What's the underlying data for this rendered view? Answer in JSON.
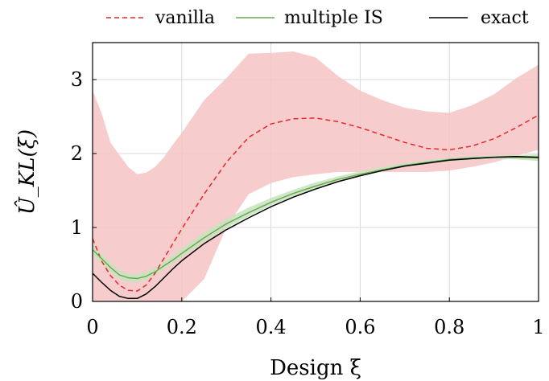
{
  "chart_data": {
    "type": "line",
    "title": "",
    "xlabel": "Design ξ",
    "ylabel": "Û_KL(ξ)",
    "xlim": [
      0,
      1
    ],
    "ylim": [
      0,
      3.5
    ],
    "xticks": [
      0,
      0.2,
      0.4,
      0.6,
      0.8,
      1
    ],
    "xtick_labels": [
      "0",
      "0.2",
      "0.4",
      "0.6",
      "0.8",
      "1"
    ],
    "yticks": [
      0,
      1,
      2,
      3
    ],
    "ytick_labels": [
      "0",
      "1",
      "2",
      "3"
    ],
    "grid": true,
    "legend_position": "top, above plot",
    "x": [
      0,
      0.02,
      0.04,
      0.06,
      0.08,
      0.1,
      0.12,
      0.14,
      0.16,
      0.18,
      0.2,
      0.25,
      0.3,
      0.35,
      0.4,
      0.45,
      0.5,
      0.55,
      0.6,
      0.65,
      0.7,
      0.75,
      0.8,
      0.85,
      0.9,
      0.95,
      1
    ],
    "series": [
      {
        "name": "vanilla",
        "style": "dashed",
        "color": "#e8262a",
        "values": [
          0.85,
          0.55,
          0.35,
          0.22,
          0.15,
          0.14,
          0.22,
          0.38,
          0.58,
          0.78,
          0.98,
          1.45,
          1.88,
          2.22,
          2.4,
          2.47,
          2.48,
          2.43,
          2.35,
          2.25,
          2.15,
          2.07,
          2.05,
          2.1,
          2.2,
          2.35,
          2.52
        ],
        "band_lower": [
          0.0,
          0.0,
          0.0,
          0.0,
          0.0,
          0.0,
          0.0,
          0.0,
          0.0,
          0.0,
          0.0,
          0.3,
          1.0,
          1.45,
          1.6,
          1.68,
          1.72,
          1.75,
          1.75,
          1.75,
          1.75,
          1.75,
          1.77,
          1.82,
          1.88,
          1.97,
          2.05
        ],
        "band_upper": [
          2.85,
          2.55,
          2.15,
          1.98,
          1.82,
          1.72,
          1.74,
          1.82,
          1.95,
          2.12,
          2.28,
          2.72,
          3.02,
          3.35,
          3.36,
          3.38,
          3.3,
          3.05,
          2.85,
          2.72,
          2.62,
          2.57,
          2.55,
          2.65,
          2.8,
          3.02,
          3.2
        ],
        "band_color": "#f6c3c3"
      },
      {
        "name": "multiple IS",
        "style": "solid",
        "color": "#6aaa55",
        "values": [
          0.7,
          0.58,
          0.46,
          0.36,
          0.32,
          0.31,
          0.34,
          0.4,
          0.48,
          0.56,
          0.65,
          0.86,
          1.05,
          1.2,
          1.34,
          1.46,
          1.56,
          1.65,
          1.72,
          1.78,
          1.84,
          1.88,
          1.92,
          1.94,
          1.95,
          1.95,
          1.94
        ],
        "band_lower": [
          0.63,
          0.51,
          0.39,
          0.3,
          0.26,
          0.26,
          0.29,
          0.35,
          0.43,
          0.51,
          0.6,
          0.8,
          0.99,
          1.15,
          1.3,
          1.42,
          1.52,
          1.61,
          1.69,
          1.76,
          1.82,
          1.86,
          1.9,
          1.92,
          1.93,
          1.92,
          1.9
        ],
        "band_upper": [
          0.77,
          0.65,
          0.53,
          0.42,
          0.38,
          0.37,
          0.4,
          0.46,
          0.54,
          0.62,
          0.72,
          0.93,
          1.12,
          1.27,
          1.4,
          1.51,
          1.61,
          1.69,
          1.76,
          1.82,
          1.87,
          1.91,
          1.94,
          1.96,
          1.97,
          1.98,
          1.99
        ],
        "band_color": "#c7e3bd"
      },
      {
        "name": "exact",
        "style": "solid",
        "color": "#000000",
        "values": [
          0.38,
          0.26,
          0.15,
          0.07,
          0.04,
          0.04,
          0.1,
          0.2,
          0.32,
          0.44,
          0.55,
          0.78,
          0.97,
          1.13,
          1.28,
          1.41,
          1.52,
          1.62,
          1.7,
          1.77,
          1.83,
          1.87,
          1.91,
          1.93,
          1.95,
          1.96,
          1.95
        ]
      }
    ]
  }
}
